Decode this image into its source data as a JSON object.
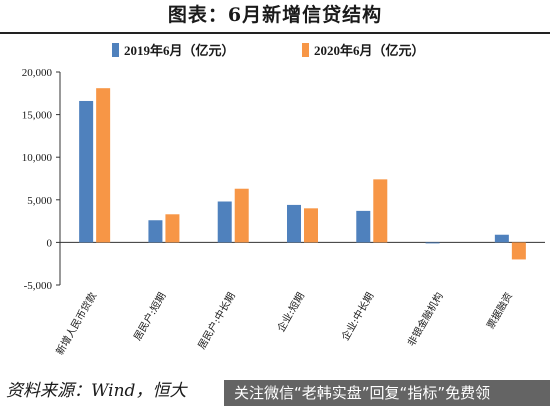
{
  "page": {
    "title": "图表：6月新增信贷结构",
    "source": "资料来源：Wind，恒大",
    "watermark": "关注微信“老韩实盘”回复“指标”免费领"
  },
  "chart_data": {
    "type": "bar",
    "title": "图表：6月新增信贷结构",
    "categories": [
      "新增人民币贷款",
      "居民户:短期",
      "居民户:中长期",
      "企业:短期",
      "企业:中长期",
      "非银金融机构",
      "票据融资"
    ],
    "series": [
      {
        "name": "2019年6月（亿元）",
        "color": "#4f81bd",
        "values": [
          16600,
          2600,
          4800,
          4400,
          3700,
          -100,
          900
        ]
      },
      {
        "name": "2020年6月（亿元）",
        "color": "#f79646",
        "values": [
          18100,
          3300,
          6300,
          4000,
          7400,
          0,
          -2000
        ]
      }
    ],
    "ylim": [
      -5000,
      20000
    ],
    "yticks": [
      "20,000",
      "15,000",
      "10,000",
      "5,000",
      "0",
      "-5,000"
    ],
    "ytick_values": [
      20000,
      15000,
      10000,
      5000,
      0,
      -5000
    ],
    "legend_position": "top",
    "grid": false
  }
}
